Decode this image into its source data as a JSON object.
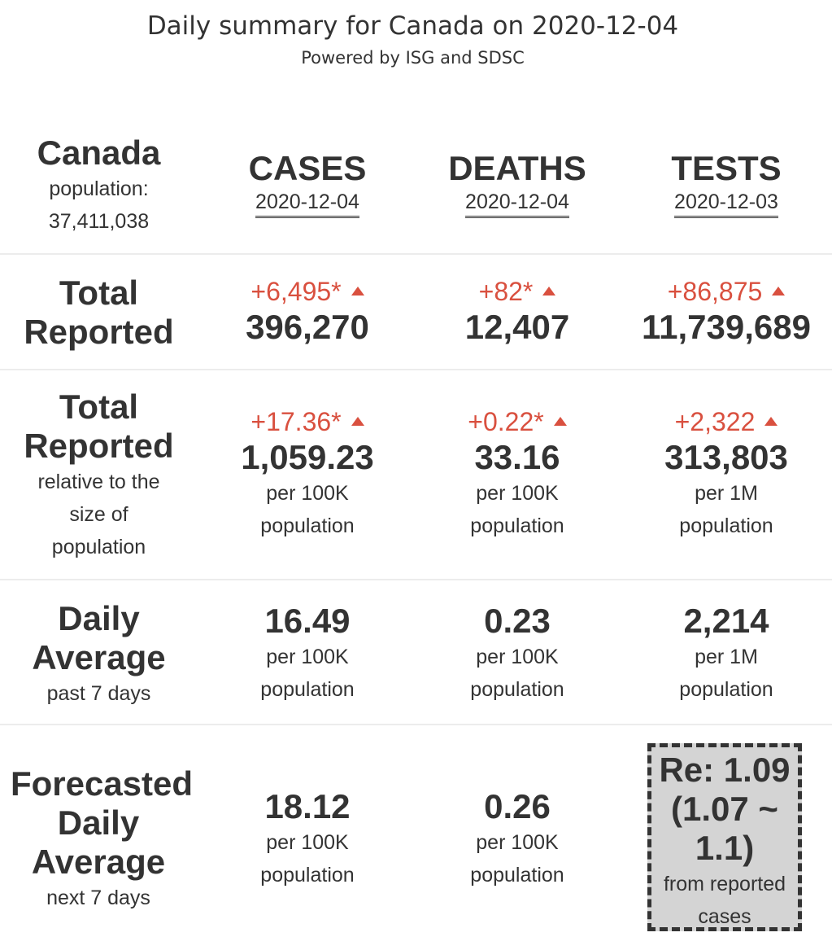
{
  "header": {
    "title": "Daily summary for Canada on 2020-12-04",
    "subtitle": "Powered by ISG and SDSC"
  },
  "region": {
    "name": "Canada",
    "population_label": "population:",
    "population": "37,411,038"
  },
  "columns": [
    {
      "name": "CASES",
      "date": "2020-12-04"
    },
    {
      "name": "DEATHS",
      "date": "2020-12-04"
    },
    {
      "name": "TESTS",
      "date": "2020-12-03"
    }
  ],
  "rows": {
    "total": {
      "label_line1": "Total",
      "label_line2": "Reported",
      "cells": [
        {
          "delta": "+6,495*",
          "value": "396,270"
        },
        {
          "delta": "+82*",
          "value": "12,407"
        },
        {
          "delta": "+86,875",
          "value": "11,739,689"
        }
      ]
    },
    "relative": {
      "label_line1": "Total",
      "label_line2": "Reported",
      "sub1": "relative to the",
      "sub2": "size of",
      "sub3": "population",
      "cells": [
        {
          "delta": "+17.36*",
          "value": "1,059.23",
          "unit": "per 100K",
          "unit2": "population"
        },
        {
          "delta": "+0.22*",
          "value": "33.16",
          "unit": "per 100K",
          "unit2": "population"
        },
        {
          "delta": "+2,322",
          "value": "313,803",
          "unit": "per 1M",
          "unit2": "population"
        }
      ]
    },
    "daily": {
      "label_line1": "Daily",
      "label_line2": "Average",
      "sub1": "past 7 days",
      "cells": [
        {
          "value": "16.49",
          "unit": "per 100K",
          "unit2": "population"
        },
        {
          "value": "0.23",
          "unit": "per 100K",
          "unit2": "population"
        },
        {
          "value": "2,214",
          "unit": "per 1M",
          "unit2": "population"
        }
      ]
    },
    "forecast": {
      "label_line1": "Forecasted",
      "label_line2": "Daily",
      "label_line3": "Average",
      "sub1": "next 7 days",
      "cells": [
        {
          "value": "18.12",
          "unit": "per 100K",
          "unit2": "population"
        },
        {
          "value": "0.26",
          "unit": "per 100K",
          "unit2": "population"
        }
      ],
      "re": {
        "line1": "Re: 1.09",
        "line2": "(1.07 ~",
        "line3": "1.1)",
        "note1": "from reported",
        "note2": "cases"
      }
    }
  },
  "colors": {
    "increase": "#d9503f",
    "text": "#333333",
    "re_box_bg": "#d4d4d4"
  },
  "icons": {
    "increase": "triangle-up-icon"
  }
}
